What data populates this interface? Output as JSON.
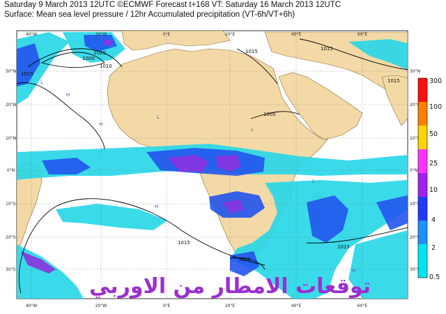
{
  "header": {
    "line1": "Saturday 9 March 2013 12UTC ©ECMWF Forecast t+168 VT: Saturday 16 March 2013 12UTC",
    "line2": "Surface: Mean sea level pressure / 12hr Accumulated precipitation (VT-6h/VT+6h)"
  },
  "map": {
    "lon_labels": [
      "40°W",
      "20°W",
      "0°E",
      "20°E",
      "40°E",
      "60°E"
    ],
    "lat_labels_left": [
      "30°N",
      "20°N",
      "10°N",
      "0°N",
      "10°S",
      "20°S",
      "30°S"
    ],
    "lat_labels_right": [
      "30°N",
      "20°N",
      "10°N",
      "0°N",
      "10°S",
      "20°S",
      "30°S"
    ],
    "contour_labels": [
      "1015",
      "1020",
      "1010",
      "1015",
      "1005",
      "1000",
      "1015",
      "1015",
      "1015",
      "1010",
      "1015"
    ],
    "pressure_centers": [
      "L",
      "H",
      "H",
      "L",
      "L",
      "H",
      "H",
      "L"
    ],
    "watermark": "توقعات الامطار من الاوربي",
    "colors": {
      "sea": "#ffffff",
      "land": "#f3d9a6",
      "contour": "#000000",
      "precip_light": "#2ad7e8",
      "precip_med": "#2255ee",
      "precip_heavy": "#8a33e0",
      "watermark": "#9b2fd0"
    }
  },
  "legend": {
    "values": [
      "300",
      "100",
      "50",
      "25",
      "10",
      "4",
      "2",
      "0.5"
    ],
    "colors": [
      "#ff1010",
      "#ff7f00",
      "#ffd400",
      "#ff33ff",
      "#a020f0",
      "#1e3cff",
      "#1e90ff",
      "#00e5ee"
    ]
  }
}
